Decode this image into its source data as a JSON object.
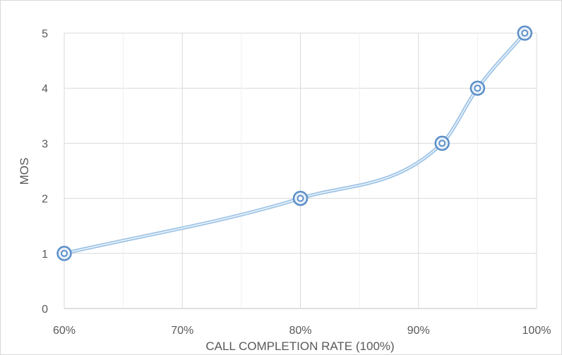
{
  "chart_data": {
    "type": "line",
    "title": "",
    "xlabel": "CALL COMPLETION RATE (100%)",
    "ylabel": "MOS",
    "xlim": [
      60,
      100
    ],
    "ylim": [
      0,
      5
    ],
    "x_ticks": [
      "60%",
      "70%",
      "80%",
      "90%",
      "100%"
    ],
    "y_ticks": [
      "0",
      "1",
      "2",
      "3",
      "4",
      "5"
    ],
    "x_tick_values": [
      60,
      70,
      80,
      90,
      100
    ],
    "y_tick_values": [
      0,
      1,
      2,
      3,
      4,
      5
    ],
    "x_minor_gridlines": [
      65,
      75,
      85,
      95
    ],
    "grid": true,
    "smooth": true,
    "series": [
      {
        "x": [
          60,
          80,
          92,
          95,
          99
        ],
        "y": [
          1,
          2,
          3,
          4,
          5
        ],
        "color": "#9dc3e6",
        "marker_color": "#5b8fc7"
      }
    ]
  }
}
